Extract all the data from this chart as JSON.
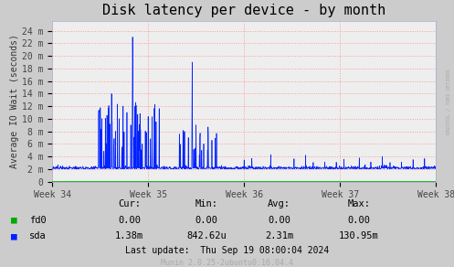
{
  "title": "Disk latency per device - by month",
  "ylabel": "Average IO Wait (seconds)",
  "plot_bg_color": "#EEEEEE",
  "outer_bg_color": "#CCCCCC",
  "grid_color": "#FF9999",
  "ytick_labels": [
    "0",
    "2 m",
    "4 m",
    "6 m",
    "8 m",
    "10 m",
    "12 m",
    "14 m",
    "16 m",
    "18 m",
    "20 m",
    "22 m",
    "24 m"
  ],
  "ytick_values": [
    0,
    0.002,
    0.004,
    0.006,
    0.008,
    0.01,
    0.012,
    0.014,
    0.016,
    0.018,
    0.02,
    0.022,
    0.024
  ],
  "ylim": [
    0,
    0.0255
  ],
  "week_labels": [
    "Week 34",
    "Week 35",
    "Week 36",
    "Week 37",
    "Week 38"
  ],
  "fd0_color": "#00AA00",
  "sda_color": "#0022FF",
  "table_headers": [
    "Cur:",
    "Min:",
    "Avg:",
    "Max:"
  ],
  "table_fd0": [
    "0.00",
    "0.00",
    "0.00",
    "0.00"
  ],
  "table_sda": [
    "1.38m",
    "842.62u",
    "2.31m",
    "130.95m"
  ],
  "last_update": "Last update:  Thu Sep 19 08:00:04 2024",
  "munin_version": "Munin 2.0.25-2ubuntu0.16.04.4",
  "rrdtool_label": "RRDTOOL / TOBI OETIKER",
  "title_fontsize": 11,
  "axis_label_fontsize": 7,
  "tick_fontsize": 7,
  "table_fontsize": 7.5
}
